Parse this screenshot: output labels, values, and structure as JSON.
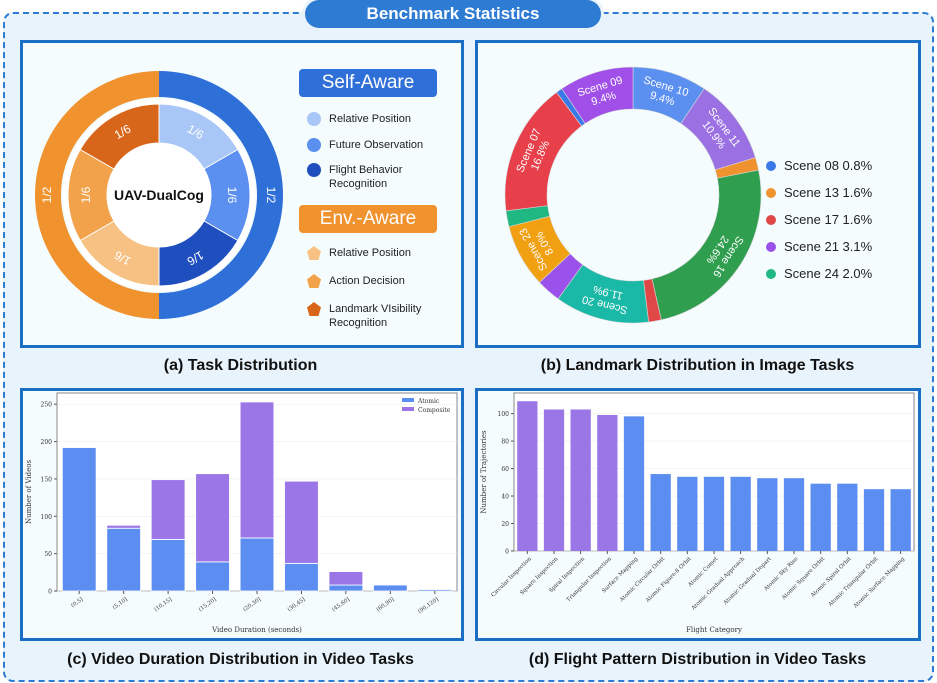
{
  "title": "Benchmark Statistics",
  "captions": {
    "a": "(a) Task Distribution",
    "b": "(b) Landmark Distribution in Image Tasks",
    "c": "(c) Video Duration Distribution in Video Tasks",
    "d": "(d) Flight Pattern Distribution in Video Tasks"
  },
  "chart_data": [
    {
      "type": "pie",
      "variant": "nested-donut",
      "center_label": "UAV-DualCog",
      "outer": [
        {
          "name": "Self-Aware",
          "label": "1/2",
          "value": 0.5,
          "color": "#2f6fd8"
        },
        {
          "name": "Env.-Aware",
          "label": "1/2",
          "value": 0.5,
          "color": "#f0922e"
        }
      ],
      "inner": [
        {
          "group": "Self-Aware",
          "name": "Relative Position",
          "label": "1/6",
          "value": 0.1667,
          "color": "#a8c6f6"
        },
        {
          "group": "Self-Aware",
          "name": "Future Observation",
          "label": "1/6",
          "value": 0.1667,
          "color": "#5b8ff0"
        },
        {
          "group": "Self-Aware",
          "name": "Flight Behavior Recognition",
          "label": "1/6",
          "value": 0.1667,
          "color": "#1f4fbf"
        },
        {
          "group": "Env.-Aware",
          "name": "Relative Position",
          "label": "1/6",
          "value": 0.1667,
          "color": "#f6c183"
        },
        {
          "group": "Env.-Aware",
          "name": "Action Decision",
          "label": "1/6",
          "value": 0.1667,
          "color": "#f2a24a"
        },
        {
          "group": "Env.-Aware",
          "name": "Landmark VIsibility Recognition",
          "label": "1/6",
          "value": 0.1667,
          "color": "#d8661a"
        }
      ],
      "legend": {
        "groups": [
          {
            "title": "Self-Aware",
            "color": "#2f6fd8",
            "marker": "circle",
            "items": [
              "Relative Position",
              "Future Observation",
              "Flight Behavior Recognition"
            ]
          },
          {
            "title": "Env.-Aware",
            "color": "#f0922e",
            "marker": "pentagon",
            "items": [
              "Relative Position",
              "Action Decision",
              "Landmark VIsibility Recognition"
            ]
          }
        ]
      }
    },
    {
      "type": "pie",
      "variant": "donut",
      "unit": "%",
      "slices": [
        {
          "name": "Scene 10",
          "value": 9.4,
          "color": "#5b8ff0"
        },
        {
          "name": "Scene 11",
          "value": 10.9,
          "color": "#9b70e2"
        },
        {
          "name": "Scene 13",
          "value": 1.6,
          "color": "#f0922e"
        },
        {
          "name": "Scene 16",
          "value": 24.6,
          "color": "#2f9e4f"
        },
        {
          "name": "Scene 17",
          "value": 1.6,
          "color": "#e04848"
        },
        {
          "name": "Scene 20",
          "value": 11.9,
          "color": "#1ab8a6"
        },
        {
          "name": "Scene 21",
          "value": 3.1,
          "color": "#9a52ea"
        },
        {
          "name": "Scene 23",
          "value": 8.0,
          "color": "#f0a010"
        },
        {
          "name": "Scene 24",
          "value": 2.0,
          "color": "#20b882"
        },
        {
          "name": "Scene 07",
          "value": 16.8,
          "color": "#e8404a"
        },
        {
          "name": "Scene 08",
          "value": 0.8,
          "color": "#3a7ae8"
        },
        {
          "name": "Scene 09",
          "value": 9.4,
          "color": "#a050e8"
        }
      ],
      "legend": [
        "Scene 08 0.8%",
        "Scene 13 1.6%",
        "Scene 17 1.6%",
        "Scene 21 3.1%",
        "Scene 24 2.0%"
      ],
      "legend_colors": [
        "#3a7ae8",
        "#f0922e",
        "#e04848",
        "#9a52ea",
        "#20b882"
      ]
    },
    {
      "type": "bar",
      "stacked": true,
      "categories": [
        "(0,5]",
        "(5,10]",
        "(10,15]",
        "(15,20]",
        "(20,30]",
        "(30,45]",
        "(45,60]",
        "(60,90]",
        "(90,120]"
      ],
      "series": [
        {
          "name": "Atomic",
          "values": [
            192,
            84,
            69,
            39,
            71,
            37,
            8,
            8,
            2
          ],
          "color": "#5b8ef0"
        },
        {
          "name": "Composite",
          "values": [
            0,
            4,
            80,
            118,
            182,
            110,
            18,
            0,
            0
          ],
          "color": "#9b76e6"
        }
      ],
      "xlabel": "Video Duration (seconds)",
      "ylabel": "Number of Videos",
      "ylim": [
        0,
        265
      ],
      "yticks": [
        0,
        50,
        100,
        150,
        200,
        250
      ],
      "legend_position": "top-right",
      "grid": true
    },
    {
      "type": "bar",
      "categories": [
        "Circular Inspection",
        "Square Inspection",
        "Spiral Inspection",
        "Triangular Inspection",
        "Surface Mapping",
        "Atomic Circular Orbit",
        "Atomic Figure-8 Orbit",
        "Atomic Comet",
        "Atomic Gradual Approach",
        "Atomic Gradual Depart",
        "Atomic Sky Rise",
        "Atomic Square Orbit",
        "Atomic Spiral Orbit",
        "Atomic Triangular Orbit",
        "Atomic Surface Mapping"
      ],
      "values": [
        109,
        103,
        103,
        99,
        98,
        56,
        54,
        54,
        54,
        53,
        53,
        49,
        49,
        45,
        45
      ],
      "colors": [
        "#9b76e6",
        "#9b76e6",
        "#9b76e6",
        "#9b76e6",
        "#5b8ef0",
        "#5b8ef0",
        "#5b8ef0",
        "#5b8ef0",
        "#5b8ef0",
        "#5b8ef0",
        "#5b8ef0",
        "#5b8ef0",
        "#5b8ef0",
        "#5b8ef0",
        "#5b8ef0"
      ],
      "xlabel": "Flight Category",
      "ylabel": "Number of Trajectories",
      "ylim": [
        0,
        115
      ],
      "yticks": [
        0,
        20,
        40,
        60,
        80,
        100
      ],
      "grid": true
    }
  ]
}
